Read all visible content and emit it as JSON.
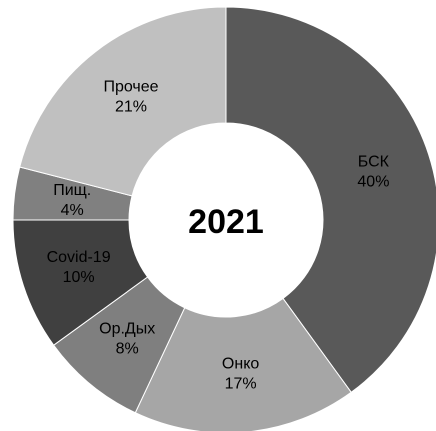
{
  "chart_data": {
    "type": "donut",
    "title": "2021",
    "categories": [
      "БСК",
      "Онко",
      "Ор.Дых",
      "Covid-19",
      "Пищ.",
      "Прочее"
    ],
    "values": [
      40,
      17,
      8,
      10,
      4,
      21
    ],
    "value_labels": [
      "40%",
      "17%",
      "8%",
      "10%",
      "4%",
      "21%"
    ],
    "colors": [
      "#595959",
      "#a6a6a6",
      "#7f7f7f",
      "#404040",
      "#808080",
      "#c0c0c0"
    ]
  }
}
